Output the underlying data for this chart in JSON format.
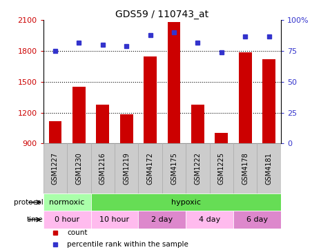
{
  "title": "GDS59 / 110743_at",
  "samples": [
    "GSM1227",
    "GSM1230",
    "GSM1216",
    "GSM1219",
    "GSM4172",
    "GSM4175",
    "GSM1222",
    "GSM1225",
    "GSM4178",
    "GSM4181"
  ],
  "counts": [
    1120,
    1455,
    1280,
    1185,
    1745,
    2080,
    1280,
    1005,
    1790,
    1720
  ],
  "percentile_ranks": [
    75,
    82,
    80,
    79,
    88,
    90,
    82,
    74,
    87,
    87
  ],
  "ylim_left": [
    900,
    2100
  ],
  "ylim_right": [
    0,
    100
  ],
  "yticks_left": [
    900,
    1200,
    1500,
    1800,
    2100
  ],
  "yticks_right": [
    0,
    25,
    50,
    75,
    100
  ],
  "right_yticklabels": [
    "0",
    "25",
    "50",
    "75",
    "100%"
  ],
  "dotted_line_y": [
    1200,
    1500,
    1800
  ],
  "bar_color": "#cc0000",
  "dot_color": "#3333cc",
  "protocol_regions": [
    {
      "label": "normoxic",
      "start": 0,
      "end": 2,
      "color": "#aaffaa"
    },
    {
      "label": "hypoxic",
      "start": 2,
      "end": 10,
      "color": "#66dd55"
    }
  ],
  "time_regions": [
    {
      "label": "0 hour",
      "start": 0,
      "end": 2,
      "color": "#ffbbee"
    },
    {
      "label": "10 hour",
      "start": 2,
      "end": 4,
      "color": "#ffbbee"
    },
    {
      "label": "2 day",
      "start": 4,
      "end": 6,
      "color": "#dd88cc"
    },
    {
      "label": "4 day",
      "start": 6,
      "end": 8,
      "color": "#ffbbee"
    },
    {
      "label": "6 day",
      "start": 8,
      "end": 10,
      "color": "#dd88cc"
    }
  ],
  "legend_items": [
    {
      "label": "count",
      "color": "#cc0000"
    },
    {
      "label": "percentile rank within the sample",
      "color": "#3333cc"
    }
  ],
  "sample_box_color": "#cccccc",
  "sample_box_edge": "#aaaaaa"
}
